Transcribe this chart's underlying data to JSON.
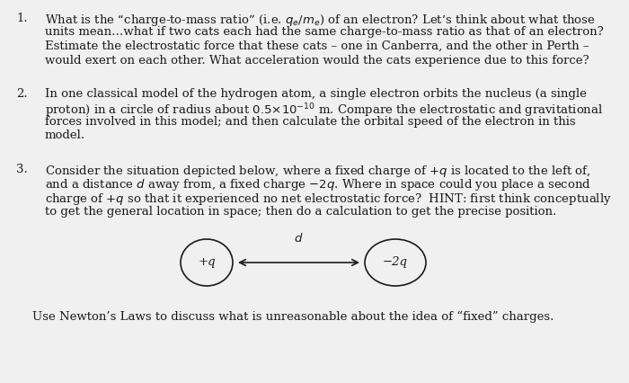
{
  "background_color": "#f0f0f0",
  "text_color": "#1a1a1a",
  "font_size": 9.5,
  "item1_lines": [
    "What is the “charge-to-mass ratio” (i.e. $q_e/m_e$) of an electron? Let’s think about what those",
    "units mean…what if two cats each had the same charge-to-mass ratio as that of an electron?",
    "Estimate the electrostatic force that these cats – one in Canberra, and the other in Perth –",
    "would exert on each other. What acceleration would the cats experience due to this force?"
  ],
  "item2_lines": [
    "In one classical model of the hydrogen atom, a single electron orbits the nucleus (a single",
    "proton) in a circle of radius about $0.5{\\times}10^{-10}$ m. Compare the electrostatic and gravitational",
    "forces involved in this model; and then calculate the orbital speed of the electron in this",
    "model."
  ],
  "item3_lines": [
    "Consider the situation depicted below, where a fixed charge of $+q$ is located to the left of,",
    "and a distance $d$ away from, a fixed charge $-2q$. Where in space could you place a second",
    "charge of $+q$ so that it experienced no net electrostatic force?  HINT: first think conceptually",
    "to get the general location in space; then do a calculation to get the precise position."
  ],
  "footer": "Use Newton’s Laws to discuss what is unreasonable about the idea of “fixed” charges.",
  "circle1_label": "+q",
  "circle2_label": "−2q",
  "arrow_label": "d"
}
